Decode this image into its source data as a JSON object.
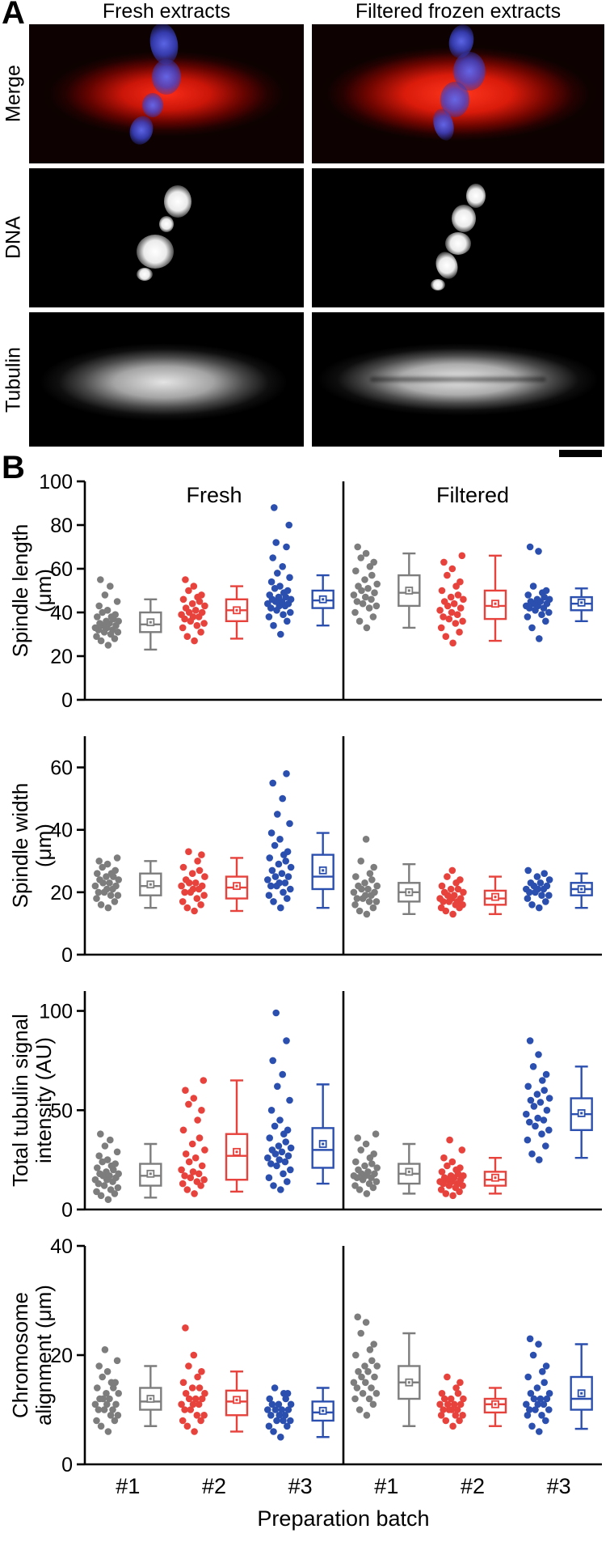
{
  "figure": {
    "panelA": {
      "label": "A",
      "column_headers": [
        "Fresh extracts",
        "Filtered frozen extracts"
      ],
      "row_labels": [
        "Merge",
        "DNA",
        "Tubulin"
      ]
    },
    "panelB": {
      "label": "B",
      "section_headers": [
        "Fresh",
        "Filtered"
      ],
      "x_tick_labels": [
        "#1",
        "#2",
        "#3",
        "#1",
        "#2",
        "#3"
      ],
      "x_axis_label": "Preparation batch"
    },
    "colors": {
      "batch1": "#7d7d7d",
      "batch2": "#e8423d",
      "batch3": "#2b4fae",
      "merge_red": "#d40000",
      "merge_blue": "#3c46c8"
    }
  },
  "chart_data": [
    {
      "type": "scatter",
      "ylabel": "Spindle length (μm)",
      "ylabel_lines": [
        "Spindle length",
        "(μm)"
      ],
      "ylim": [
        0,
        100
      ],
      "yticks": [
        0,
        20,
        40,
        60,
        80,
        100
      ],
      "x_sections": [
        "Fresh",
        "Filtered"
      ],
      "x_categories": [
        "#1",
        "#2",
        "#3"
      ],
      "groups": [
        {
          "section": "Fresh",
          "batch": "#1",
          "color": "#7d7d7d",
          "points": [
            25,
            27,
            28,
            29,
            30,
            31,
            31,
            32,
            32,
            33,
            33,
            34,
            34,
            35,
            35,
            36,
            36,
            37,
            38,
            38,
            39,
            40,
            41,
            43,
            45,
            48,
            52,
            55
          ],
          "box": {
            "low": 23,
            "q1": 31,
            "median": 34.5,
            "mean": 35.5,
            "q3": 40,
            "high": 46
          }
        },
        {
          "section": "Fresh",
          "batch": "#2",
          "color": "#e8423d",
          "points": [
            27,
            29,
            31,
            33,
            34,
            35,
            36,
            37,
            38,
            38,
            39,
            40,
            40,
            41,
            42,
            43,
            44,
            45,
            46,
            47,
            48,
            50,
            52,
            55
          ],
          "box": {
            "low": 28,
            "q1": 36,
            "median": 41,
            "mean": 41,
            "q3": 46,
            "high": 52
          }
        },
        {
          "section": "Fresh",
          "batch": "#3",
          "color": "#2b4fae",
          "points": [
            30,
            34,
            36,
            38,
            39,
            40,
            41,
            42,
            43,
            43,
            44,
            44,
            45,
            45,
            46,
            46,
            47,
            47,
            48,
            49,
            50,
            51,
            52,
            54,
            56,
            58,
            61,
            65,
            70,
            72,
            80,
            88
          ],
          "box": {
            "low": 34,
            "q1": 42,
            "median": 45.5,
            "mean": 46,
            "q3": 50,
            "high": 57
          }
        },
        {
          "section": "Filtered",
          "batch": "#1",
          "color": "#7d7d7d",
          "points": [
            33,
            36,
            38,
            40,
            42,
            43,
            44,
            45,
            46,
            47,
            48,
            49,
            50,
            51,
            52,
            53,
            55,
            57,
            59,
            61,
            63,
            65,
            67,
            70
          ],
          "box": {
            "low": 33,
            "q1": 43,
            "median": 49,
            "mean": 50,
            "q3": 57,
            "high": 67
          }
        },
        {
          "section": "Filtered",
          "batch": "#2",
          "color": "#e8423d",
          "points": [
            26,
            29,
            31,
            33,
            35,
            36,
            37,
            38,
            39,
            40,
            41,
            42,
            43,
            44,
            45,
            46,
            47,
            48,
            50,
            52,
            54,
            57,
            60,
            63,
            66
          ],
          "box": {
            "low": 27,
            "q1": 37,
            "median": 43,
            "mean": 44,
            "q3": 50,
            "high": 66
          }
        },
        {
          "section": "Filtered",
          "batch": "#3",
          "color": "#2b4fae",
          "points": [
            28,
            33,
            36,
            38,
            39,
            40,
            41,
            42,
            42,
            43,
            43,
            44,
            44,
            45,
            45,
            46,
            46,
            47,
            48,
            49,
            50,
            52,
            68,
            70
          ],
          "box": {
            "low": 36,
            "q1": 41,
            "median": 44,
            "mean": 44.5,
            "q3": 47,
            "high": 51
          }
        }
      ]
    },
    {
      "type": "scatter",
      "ylabel": "Spindle width (μm)",
      "ylabel_lines": [
        "Spindle width",
        "(μm)"
      ],
      "ylim": [
        0,
        70
      ],
      "yticks": [
        0,
        20,
        40,
        60
      ],
      "x_sections": [
        "Fresh",
        "Filtered"
      ],
      "x_categories": [
        "#1",
        "#2",
        "#3"
      ],
      "groups": [
        {
          "section": "Fresh",
          "batch": "#1",
          "color": "#7d7d7d",
          "points": [
            15,
            16,
            17,
            18,
            19,
            19,
            20,
            20,
            21,
            21,
            22,
            22,
            23,
            23,
            24,
            24,
            25,
            25,
            26,
            26,
            27,
            28,
            29,
            30,
            31
          ],
          "box": {
            "low": 15,
            "q1": 19,
            "median": 22,
            "mean": 22.5,
            "q3": 26,
            "high": 30
          }
        },
        {
          "section": "Fresh",
          "batch": "#2",
          "color": "#e8423d",
          "points": [
            14,
            15,
            16,
            17,
            18,
            19,
            20,
            20,
            21,
            21,
            22,
            22,
            23,
            23,
            24,
            25,
            26,
            27,
            28,
            30,
            32,
            33
          ],
          "box": {
            "low": 14,
            "q1": 18,
            "median": 21.5,
            "mean": 22,
            "q3": 25,
            "high": 31
          }
        },
        {
          "section": "Fresh",
          "batch": "#3",
          "color": "#2b4fae",
          "points": [
            15,
            17,
            18,
            19,
            20,
            21,
            22,
            22,
            23,
            23,
            24,
            25,
            25,
            26,
            27,
            28,
            29,
            30,
            31,
            32,
            33,
            35,
            37,
            39,
            42,
            45,
            50,
            55,
            58
          ],
          "box": {
            "low": 15,
            "q1": 21,
            "median": 25,
            "mean": 27,
            "q3": 32,
            "high": 39
          }
        },
        {
          "section": "Filtered",
          "batch": "#1",
          "color": "#7d7d7d",
          "points": [
            13,
            14,
            15,
            16,
            17,
            17,
            18,
            18,
            19,
            19,
            20,
            20,
            21,
            21,
            22,
            22,
            23,
            24,
            25,
            26,
            28,
            30,
            37
          ],
          "box": {
            "low": 13,
            "q1": 17,
            "median": 20,
            "mean": 20,
            "q3": 23,
            "high": 29
          }
        },
        {
          "section": "Filtered",
          "batch": "#2",
          "color": "#e8423d",
          "points": [
            13,
            14,
            15,
            15,
            16,
            16,
            17,
            17,
            17,
            18,
            18,
            18,
            19,
            19,
            20,
            20,
            21,
            21,
            22,
            23,
            24,
            25,
            27
          ],
          "box": {
            "low": 13,
            "q1": 16,
            "median": 18,
            "mean": 18.5,
            "q3": 20.5,
            "high": 25
          }
        },
        {
          "section": "Filtered",
          "batch": "#3",
          "color": "#2b4fae",
          "points": [
            15,
            16,
            17,
            18,
            19,
            19,
            20,
            20,
            21,
            21,
            21,
            22,
            22,
            23,
            23,
            24,
            25,
            26,
            27
          ],
          "box": {
            "low": 15,
            "q1": 19,
            "median": 21,
            "mean": 21,
            "q3": 23,
            "high": 26
          }
        }
      ]
    },
    {
      "type": "scatter",
      "ylabel": "Total tubulin signal intensity (AU)",
      "ylabel_lines": [
        "Total tubulin signal",
        "intensity (AU)"
      ],
      "ylim": [
        0,
        110
      ],
      "yticks": [
        0,
        50,
        100
      ],
      "x_sections": [
        "Fresh",
        "Filtered"
      ],
      "x_categories": [
        "#1",
        "#2",
        "#3"
      ],
      "groups": [
        {
          "section": "Fresh",
          "batch": "#1",
          "color": "#7d7d7d",
          "points": [
            5,
            7,
            8,
            9,
            10,
            11,
            12,
            13,
            14,
            15,
            15,
            16,
            17,
            17,
            18,
            18,
            19,
            20,
            21,
            22,
            23,
            24,
            25,
            27,
            29,
            32,
            35,
            38
          ],
          "box": {
            "low": 6,
            "q1": 12,
            "median": 17,
            "mean": 18,
            "q3": 23,
            "high": 33
          }
        },
        {
          "section": "Fresh",
          "batch": "#2",
          "color": "#e8423d",
          "points": [
            8,
            10,
            12,
            13,
            14,
            15,
            16,
            17,
            18,
            19,
            20,
            22,
            24,
            26,
            28,
            30,
            33,
            36,
            40,
            45,
            50,
            53,
            56,
            60,
            65
          ],
          "box": {
            "low": 9,
            "q1": 15,
            "median": 27,
            "mean": 29,
            "q3": 38,
            "high": 65
          }
        },
        {
          "section": "Fresh",
          "batch": "#3",
          "color": "#2b4fae",
          "points": [
            10,
            12,
            14,
            16,
            18,
            20,
            22,
            23,
            24,
            25,
            26,
            27,
            28,
            29,
            30,
            31,
            32,
            34,
            36,
            38,
            40,
            42,
            45,
            50,
            55,
            62,
            68,
            75,
            85,
            99
          ],
          "box": {
            "low": 13,
            "q1": 21,
            "median": 30,
            "mean": 33,
            "q3": 41,
            "high": 63
          }
        },
        {
          "section": "Filtered",
          "batch": "#1",
          "color": "#7d7d7d",
          "points": [
            8,
            10,
            11,
            12,
            13,
            14,
            15,
            16,
            16,
            17,
            17,
            18,
            18,
            19,
            20,
            21,
            22,
            23,
            24,
            26,
            28,
            30,
            33,
            36,
            38
          ],
          "box": {
            "low": 8,
            "q1": 13,
            "median": 18,
            "mean": 19,
            "q3": 23,
            "high": 33
          }
        },
        {
          "section": "Filtered",
          "batch": "#2",
          "color": "#e8423d",
          "points": [
            7,
            8,
            9,
            10,
            11,
            12,
            12,
            13,
            13,
            14,
            14,
            15,
            15,
            16,
            16,
            17,
            17,
            18,
            19,
            20,
            21,
            22,
            24,
            26,
            30,
            35
          ],
          "box": {
            "low": 8,
            "q1": 12,
            "median": 15,
            "mean": 16,
            "q3": 19,
            "high": 26
          }
        },
        {
          "section": "Filtered",
          "batch": "#3",
          "color": "#2b4fae",
          "points": [
            25,
            28,
            32,
            35,
            38,
            40,
            42,
            44,
            45,
            46,
            48,
            50,
            52,
            54,
            55,
            56,
            58,
            60,
            62,
            65,
            68,
            72,
            78,
            85
          ],
          "box": {
            "low": 26,
            "q1": 40,
            "median": 48,
            "mean": 48.5,
            "q3": 56,
            "high": 72
          }
        }
      ]
    },
    {
      "type": "scatter",
      "ylabel": "Chromosome alignment (μm)",
      "ylabel_lines": [
        "Chromosome",
        "alignment (μm)"
      ],
      "ylim": [
        0,
        40
      ],
      "yticks": [
        0,
        20,
        40
      ],
      "x_sections": [
        "Fresh",
        "Filtered"
      ],
      "x_categories": [
        "#1",
        "#2",
        "#3"
      ],
      "groups": [
        {
          "section": "Fresh",
          "batch": "#1",
          "color": "#7d7d7d",
          "points": [
            6,
            7,
            8,
            8,
            9,
            9,
            10,
            10,
            10,
            11,
            11,
            11,
            12,
            12,
            12,
            13,
            13,
            14,
            14,
            15,
            15,
            16,
            17,
            18,
            19,
            21
          ],
          "box": {
            "low": 7,
            "q1": 10,
            "median": 11.5,
            "mean": 12,
            "q3": 14,
            "high": 18
          }
        },
        {
          "section": "Fresh",
          "batch": "#2",
          "color": "#e8423d",
          "points": [
            6,
            7,
            8,
            8,
            9,
            9,
            10,
            10,
            11,
            11,
            11,
            12,
            12,
            12,
            13,
            13,
            14,
            14,
            15,
            16,
            17,
            18,
            20,
            25
          ],
          "box": {
            "low": 6,
            "q1": 9,
            "median": 11.5,
            "mean": 11.8,
            "q3": 13.5,
            "high": 17
          }
        },
        {
          "section": "Fresh",
          "batch": "#3",
          "color": "#2b4fae",
          "points": [
            5,
            6,
            7,
            7,
            8,
            8,
            8,
            9,
            9,
            9,
            10,
            10,
            10,
            10,
            11,
            11,
            11,
            12,
            12,
            13,
            13,
            14
          ],
          "box": {
            "low": 5,
            "q1": 8,
            "median": 9.5,
            "mean": 9.8,
            "q3": 11.5,
            "high": 14
          }
        },
        {
          "section": "Filtered",
          "batch": "#1",
          "color": "#7d7d7d",
          "points": [
            9,
            10,
            11,
            12,
            12,
            13,
            13,
            14,
            14,
            15,
            15,
            16,
            16,
            17,
            17,
            18,
            18,
            19,
            20,
            21,
            22,
            24,
            26,
            27
          ],
          "box": {
            "low": 7,
            "q1": 12,
            "median": 15,
            "mean": 15,
            "q3": 18,
            "high": 24
          }
        },
        {
          "section": "Filtered",
          "batch": "#2",
          "color": "#e8423d",
          "points": [
            7,
            8,
            8,
            9,
            9,
            9,
            10,
            10,
            10,
            10,
            11,
            11,
            11,
            11,
            12,
            12,
            12,
            13,
            13,
            14,
            15,
            16
          ],
          "box": {
            "low": 7,
            "q1": 9.5,
            "median": 11,
            "mean": 11,
            "q3": 12,
            "high": 14
          }
        },
        {
          "section": "Filtered",
          "batch": "#3",
          "color": "#2b4fae",
          "points": [
            6,
            7,
            8,
            9,
            9,
            10,
            10,
            10,
            11,
            11,
            11,
            12,
            12,
            12,
            13,
            13,
            14,
            15,
            16,
            17,
            18,
            20,
            22,
            23
          ],
          "box": {
            "low": 6.5,
            "q1": 10,
            "median": 12,
            "mean": 13,
            "q3": 16,
            "high": 22
          }
        }
      ]
    }
  ]
}
